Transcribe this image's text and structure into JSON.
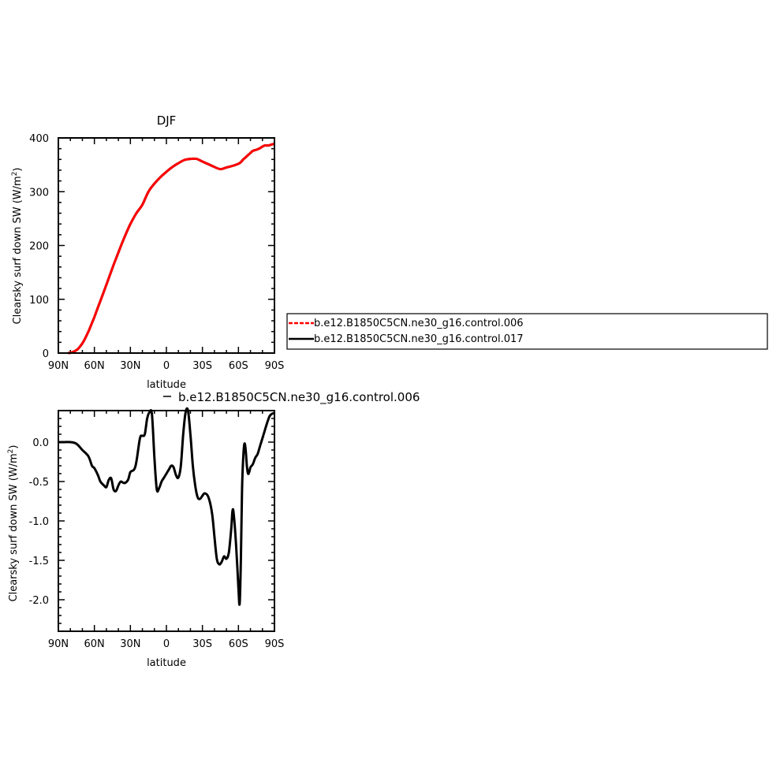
{
  "chart_data": [
    {
      "type": "line",
      "title": "DJF",
      "xlabel": "latitude",
      "ylabel": "Clearsky surf down SW (W/m",
      "ylabel_sup": "2",
      "ylabel_close": ")",
      "xlim": [
        -90,
        90
      ],
      "ylim": [
        0,
        400
      ],
      "xticks": [
        {
          "v": -90,
          "label": "90N"
        },
        {
          "v": -60,
          "label": "60N"
        },
        {
          "v": -30,
          "label": "30N"
        },
        {
          "v": 0,
          "label": "0"
        },
        {
          "v": 30,
          "label": "30S"
        },
        {
          "v": 60,
          "label": "60S"
        },
        {
          "v": 90,
          "label": "90S"
        }
      ],
      "yticks": [
        {
          "v": 0,
          "label": "0"
        },
        {
          "v": 100,
          "label": "100"
        },
        {
          "v": 200,
          "label": "200"
        },
        {
          "v": 300,
          "label": "300"
        },
        {
          "v": 400,
          "label": "400"
        }
      ],
      "legend": {
        "placement": "right",
        "entries": [
          {
            "name": "b.e12.B1850C5CN.ne30_g16.control.006",
            "color": "#ff0000",
            "dashed": true
          },
          {
            "name": "b.e12.B1850C5CN.ne30_g16.control.017",
            "color": "#000000",
            "dashed": false
          }
        ]
      },
      "series": [
        {
          "name": "b.e12.B1850C5CN.ne30_g16.control.017",
          "color": "#000000",
          "x": [
            -82,
            -80,
            -78,
            -76,
            -74,
            -72,
            -70,
            -68,
            -66,
            -64,
            -62,
            -60,
            -55,
            -50,
            -45,
            -40,
            -35,
            -30,
            -25,
            -20,
            -15,
            -10,
            -5,
            0,
            5,
            10,
            15,
            20,
            25,
            30,
            35,
            40,
            45,
            50,
            55,
            60,
            62,
            64,
            66,
            68,
            70,
            72,
            75,
            78,
            80,
            82,
            85,
            88,
            90
          ],
          "y": [
            0,
            0.5,
            2,
            4,
            7,
            12,
            18,
            26,
            35,
            45,
            56,
            67,
            97,
            127,
            158,
            187,
            215,
            240,
            260,
            276,
            300,
            315,
            327,
            337,
            346,
            353,
            359,
            361,
            361,
            356,
            351,
            346,
            342,
            345,
            348,
            352,
            355,
            360,
            364,
            368,
            372,
            376,
            378,
            381,
            384,
            386,
            386,
            388,
            389
          ]
        },
        {
          "name": "b.e12.B1850C5CN.ne30_g16.control.006",
          "color": "#ff0000",
          "x": [
            -82,
            -80,
            -78,
            -76,
            -74,
            -72,
            -70,
            -68,
            -66,
            -64,
            -62,
            -60,
            -55,
            -50,
            -45,
            -40,
            -35,
            -30,
            -25,
            -20,
            -15,
            -10,
            -5,
            0,
            5,
            10,
            15,
            20,
            25,
            30,
            35,
            40,
            45,
            50,
            55,
            60,
            62,
            64,
            66,
            68,
            70,
            72,
            75,
            78,
            80,
            82,
            85,
            88,
            90
          ],
          "y": [
            0,
            0.5,
            2,
            4,
            7,
            12,
            18,
            26,
            35,
            45,
            56,
            67,
            97,
            127,
            158,
            187,
            215,
            240,
            260,
            276,
            300,
            315,
            327,
            337,
            346,
            353,
            359,
            361,
            361,
            356,
            351,
            346,
            342,
            345,
            348,
            352,
            355,
            360,
            364,
            368,
            372,
            376,
            378,
            381,
            384,
            386,
            386,
            388,
            389
          ]
        }
      ]
    },
    {
      "type": "line",
      "title": "",
      "legend_text": "b.e12.B1850C5CN.ne30_g16.control.006",
      "xlabel": "latitude",
      "ylabel": "Clearsky surf down SW (W/m",
      "ylabel_sup": "2",
      "ylabel_close": ")",
      "xlim": [
        -90,
        90
      ],
      "ylim": [
        -2.4,
        0.4
      ],
      "xticks": [
        {
          "v": -90,
          "label": "90N"
        },
        {
          "v": -60,
          "label": "60N"
        },
        {
          "v": -30,
          "label": "30N"
        },
        {
          "v": 0,
          "label": "0"
        },
        {
          "v": 30,
          "label": "30S"
        },
        {
          "v": 60,
          "label": "60S"
        },
        {
          "v": 90,
          "label": "90S"
        }
      ],
      "yticks": [
        {
          "v": 0.0,
          "label": "0.0"
        },
        {
          "v": -0.5,
          "label": "-0.5"
        },
        {
          "v": -1.0,
          "label": "-1.0"
        },
        {
          "v": -1.5,
          "label": "-1.5"
        },
        {
          "v": -2.0,
          "label": "-2.0"
        }
      ],
      "series": [
        {
          "color": "#000000",
          "x": [
            -90,
            -85,
            -80,
            -75,
            -70,
            -65,
            -62,
            -60,
            -57,
            -55,
            -52,
            -50,
            -48,
            -46,
            -44,
            -42,
            -40,
            -38,
            -35,
            -32,
            -30,
            -27,
            -25,
            -22,
            -20,
            -18,
            -16,
            -14,
            -12,
            -10,
            -8,
            -6,
            -4,
            -2,
            0,
            2,
            4,
            6,
            8,
            10,
            12,
            14,
            16,
            18,
            20,
            22,
            24,
            26,
            28,
            30,
            32,
            35,
            38,
            40,
            42,
            44,
            46,
            48,
            50,
            52,
            54,
            55,
            56,
            58,
            60,
            61,
            62,
            63,
            64,
            65,
            66,
            67,
            68,
            69,
            70,
            72,
            74,
            76,
            78,
            80,
            82,
            84,
            86,
            88,
            90
          ],
          "y": [
            0,
            0,
            0,
            -0.02,
            -0.1,
            -0.18,
            -0.3,
            -0.33,
            -0.42,
            -0.5,
            -0.55,
            -0.57,
            -0.48,
            -0.46,
            -0.6,
            -0.62,
            -0.55,
            -0.5,
            -0.52,
            -0.48,
            -0.38,
            -0.35,
            -0.25,
            0.05,
            0.08,
            0.1,
            0.3,
            0.38,
            0.35,
            -0.2,
            -0.6,
            -0.58,
            -0.5,
            -0.45,
            -0.4,
            -0.35,
            -0.3,
            -0.32,
            -0.42,
            -0.45,
            -0.3,
            0.1,
            0.38,
            0.4,
            0.1,
            -0.3,
            -0.55,
            -0.7,
            -0.72,
            -0.68,
            -0.65,
            -0.7,
            -0.9,
            -1.2,
            -1.48,
            -1.55,
            -1.52,
            -1.45,
            -1.48,
            -1.4,
            -1.1,
            -0.88,
            -0.9,
            -1.3,
            -1.85,
            -2.05,
            -1.5,
            -0.6,
            -0.2,
            -0.02,
            -0.1,
            -0.3,
            -0.4,
            -0.38,
            -0.32,
            -0.28,
            -0.2,
            -0.15,
            -0.05,
            0.05,
            0.15,
            0.25,
            0.33,
            0.36,
            0.37
          ]
        }
      ]
    }
  ]
}
